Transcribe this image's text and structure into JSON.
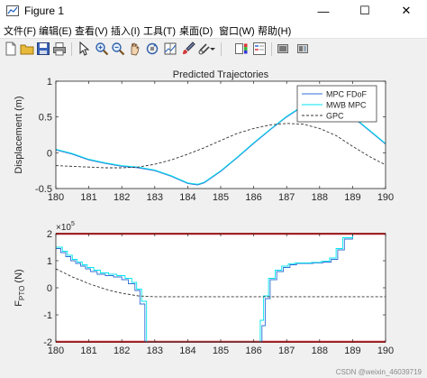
{
  "window": {
    "title": "Figure 1",
    "minimize": "—",
    "maximize": "☐",
    "close": "✕"
  },
  "menu": [
    "文件(F)",
    "编辑(E)",
    "查看(V)",
    "插入(I)",
    "工具(T)",
    "桌面(D)",
    "窗口(W)",
    "帮助(H)"
  ],
  "toolbar_icons": [
    "new-figure-icon",
    "open-file-icon",
    "save-icon",
    "print-icon",
    "pointer-icon",
    "zoom-in-icon",
    "zoom-out-icon",
    "pan-icon",
    "rotate-3d-icon",
    "data-cursor-icon",
    "brush-icon",
    "link-icon",
    "colorbar-icon",
    "legend-icon",
    "hide-plot-tools-icon",
    "show-plot-tools-icon"
  ],
  "colors": {
    "mpc": "#2e6fd6",
    "mwb": "#00e5ee",
    "gpc": "#333333",
    "limit": "#e8252b"
  },
  "watermark": "CSDN @weixin_46039719",
  "chart_data": [
    {
      "type": "line",
      "title": "Predicted Trajectories",
      "ylabel": "Displacement (m)",
      "xlabel": "",
      "xlim": [
        180,
        190
      ],
      "ylim": [
        -0.5,
        1
      ],
      "xticks": [
        "180",
        "181",
        "182",
        "183",
        "184",
        "185",
        "186",
        "187",
        "188",
        "189",
        "190"
      ],
      "yticks": [
        "-0.5",
        "0",
        "0.5",
        "1"
      ],
      "legend": {
        "placement": "top-right",
        "entries": [
          "MPC FDoF",
          "MWB MPC",
          "GPC"
        ]
      },
      "series": [
        {
          "name": "MPC FDoF",
          "style": "solid",
          "x": [
            180,
            180.5,
            181,
            181.5,
            182,
            182.5,
            183,
            183.5,
            184,
            184.3,
            184.5,
            185,
            185.5,
            186,
            186.5,
            187,
            187.5,
            188,
            188.5,
            189,
            189.5,
            190
          ],
          "y": [
            0.04,
            -0.02,
            -0.1,
            -0.15,
            -0.19,
            -0.21,
            -0.25,
            -0.33,
            -0.43,
            -0.45,
            -0.42,
            -0.26,
            -0.07,
            0.13,
            0.32,
            0.5,
            0.65,
            0.72,
            0.66,
            0.5,
            0.31,
            0.12
          ]
        },
        {
          "name": "MWB MPC",
          "style": "solid",
          "x": [
            180,
            180.5,
            181,
            181.5,
            182,
            182.5,
            183,
            183.5,
            184,
            184.3,
            184.5,
            185,
            185.5,
            186,
            186.5,
            187,
            187.5,
            188,
            188.5,
            189,
            189.5,
            190
          ],
          "y": [
            0.05,
            -0.01,
            -0.09,
            -0.14,
            -0.18,
            -0.2,
            -0.24,
            -0.32,
            -0.42,
            -0.44,
            -0.41,
            -0.25,
            -0.06,
            0.14,
            0.33,
            0.51,
            0.66,
            0.73,
            0.67,
            0.51,
            0.32,
            0.13
          ]
        },
        {
          "name": "GPC",
          "style": "dashed",
          "x": [
            180,
            180.5,
            181,
            181.5,
            182,
            182.5,
            183,
            183.5,
            184,
            184.5,
            185,
            185.5,
            186,
            186.5,
            187,
            187.5,
            188,
            188.5,
            189,
            189.5,
            190
          ],
          "y": [
            -0.18,
            -0.19,
            -0.2,
            -0.21,
            -0.21,
            -0.2,
            -0.16,
            -0.1,
            -0.02,
            0.07,
            0.17,
            0.27,
            0.34,
            0.39,
            0.41,
            0.4,
            0.34,
            0.24,
            0.09,
            -0.05,
            -0.17
          ]
        }
      ]
    },
    {
      "type": "line",
      "title": "",
      "ylabel": "F",
      "ylabel_sub": "PTO",
      "ylabel_unit": "(N)",
      "exponent_label": "×10",
      "exponent": "5",
      "xlabel": "",
      "xlim": [
        180,
        190
      ],
      "ylim": [
        -2,
        2
      ],
      "xticks": [
        "180",
        "181",
        "182",
        "183",
        "184",
        "185",
        "186",
        "187",
        "188",
        "189",
        "190"
      ],
      "yticks": [
        "-2",
        "-1",
        "0",
        "1",
        "2"
      ],
      "series": [
        {
          "name": "limit upper",
          "style": "solid",
          "x": [
            180,
            190
          ],
          "y": [
            2,
            2
          ]
        },
        {
          "name": "limit lower",
          "style": "solid",
          "x": [
            180,
            190
          ],
          "y": [
            -2,
            -2
          ]
        },
        {
          "name": "MPC FDoF",
          "style": "step",
          "x": [
            180,
            180.15,
            180.3,
            180.45,
            180.6,
            180.75,
            180.9,
            181.05,
            181.25,
            181.5,
            181.75,
            182,
            182.2,
            182.4,
            182.55,
            182.7,
            183,
            186,
            186.25,
            186.35,
            186.5,
            186.7,
            186.9,
            187.1,
            187.3,
            187.55,
            187.8,
            188.1,
            188.35,
            188.55,
            188.75,
            189.0
          ],
          "y": [
            1.45,
            1.3,
            1.15,
            1.0,
            0.9,
            0.8,
            0.7,
            0.6,
            0.5,
            0.45,
            0.4,
            0.3,
            0.15,
            -0.1,
            -0.6,
            -2.0,
            -2.0,
            -2.0,
            -1.4,
            -0.4,
            0.3,
            0.6,
            0.75,
            0.85,
            0.9,
            0.9,
            0.92,
            0.95,
            1.05,
            1.4,
            1.8,
            2.0
          ]
        },
        {
          "name": "MWB MPC",
          "style": "step",
          "x": [
            180,
            180.2,
            180.35,
            180.5,
            180.65,
            180.8,
            180.95,
            181.15,
            181.35,
            181.6,
            181.85,
            182.1,
            182.3,
            182.45,
            182.6,
            182.75,
            183,
            186,
            186.2,
            186.3,
            186.45,
            186.65,
            186.85,
            187.05,
            187.25,
            187.5,
            187.75,
            188.05,
            188.3,
            188.5,
            188.7,
            189.0
          ],
          "y": [
            1.5,
            1.35,
            1.2,
            1.05,
            0.95,
            0.85,
            0.75,
            0.65,
            0.55,
            0.5,
            0.45,
            0.35,
            0.2,
            -0.05,
            -0.5,
            -2.0,
            -2.0,
            -2.0,
            -1.2,
            -0.3,
            0.35,
            0.65,
            0.8,
            0.88,
            0.92,
            0.92,
            0.94,
            0.98,
            1.1,
            1.45,
            1.85,
            2.0
          ]
        },
        {
          "name": "GPC",
          "style": "dashed",
          "x": [
            180,
            180.25,
            180.5,
            180.75,
            181,
            181.25,
            181.5,
            181.75,
            182,
            182.25,
            182.5,
            183,
            184,
            185,
            186,
            187,
            188,
            189,
            190
          ],
          "y": [
            0.7,
            0.55,
            0.4,
            0.28,
            0.15,
            0.05,
            -0.05,
            -0.13,
            -0.2,
            -0.25,
            -0.3,
            -0.33,
            -0.33,
            -0.33,
            -0.33,
            -0.33,
            -0.33,
            -0.33,
            -0.33
          ]
        }
      ]
    }
  ]
}
